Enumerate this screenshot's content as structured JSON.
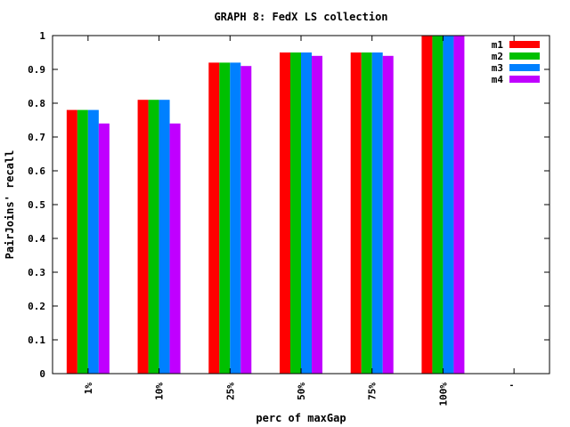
{
  "chart_data": {
    "type": "bar",
    "title": "GRAPH 8: FedX LS collection",
    "xlabel": "perc of maxGap",
    "ylabel": "PairJoins' recall",
    "categories": [
      "1%",
      "10%",
      "25%",
      "50%",
      "75%",
      "100%",
      "'"
    ],
    "ylim": [
      0,
      1
    ],
    "yticks": [
      0,
      0.1,
      0.2,
      0.3,
      0.4,
      0.5,
      0.6,
      0.7,
      0.8,
      0.9,
      1
    ],
    "ytick_labels": [
      "0",
      "0.1",
      "0.2",
      "0.3",
      "0.4",
      "0.5",
      "0.6",
      "0.7",
      "0.8",
      "0.9",
      "1"
    ],
    "grid": false,
    "legend_position": "top-right",
    "series": [
      {
        "name": "m1",
        "color": "#ff0000",
        "values": [
          0.78,
          0.81,
          0.92,
          0.95,
          0.95,
          1.0,
          null
        ]
      },
      {
        "name": "m2",
        "color": "#00c000",
        "values": [
          0.78,
          0.81,
          0.92,
          0.95,
          0.95,
          1.0,
          null
        ]
      },
      {
        "name": "m3",
        "color": "#0080ff",
        "values": [
          0.78,
          0.81,
          0.92,
          0.95,
          0.95,
          1.0,
          null
        ]
      },
      {
        "name": "m4",
        "color": "#c000ff",
        "values": [
          0.74,
          0.74,
          0.91,
          0.94,
          0.94,
          1.0,
          null
        ]
      }
    ]
  }
}
